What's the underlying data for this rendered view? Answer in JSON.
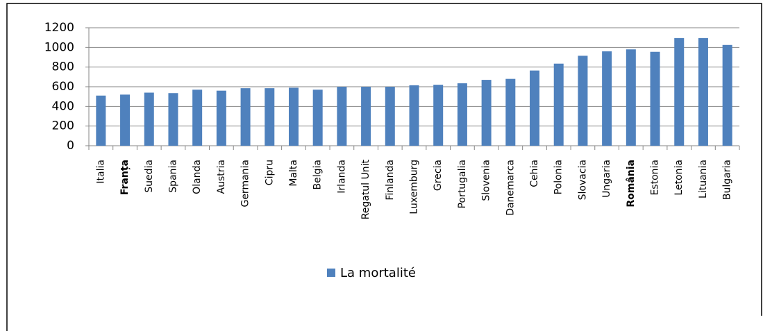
{
  "chart_data": {
    "type": "bar",
    "categories": [
      "Italia",
      "Franța",
      "Suedia",
      "Spania",
      "Olanda",
      "Austria",
      "Germania",
      "Cipru",
      "Malta",
      "Belgia",
      "Irlanda",
      "Regatul Unit",
      "Finlanda",
      "Luxemburg",
      "Grecia",
      "Portugalia",
      "Slovenia",
      "Danemarca",
      "Cehia",
      "Polonia",
      "Slovacia",
      "Ungaria",
      "România",
      "Estonia",
      "Letonia",
      "Lituania",
      "Bulgaria"
    ],
    "series": [
      {
        "name": "La mortalité",
        "color": "#4f81bd",
        "values": [
          510,
          520,
          540,
          535,
          570,
          560,
          585,
          585,
          590,
          570,
          600,
          600,
          600,
          615,
          620,
          635,
          670,
          680,
          765,
          835,
          915,
          960,
          980,
          955,
          1095,
          1095,
          1025
        ]
      }
    ],
    "ylim": [
      0,
      1200
    ],
    "yticks": [
      0,
      200,
      400,
      600,
      800,
      1000,
      1200
    ],
    "grid": true,
    "bold_categories": [
      1,
      22
    ],
    "legend": "bottom"
  }
}
